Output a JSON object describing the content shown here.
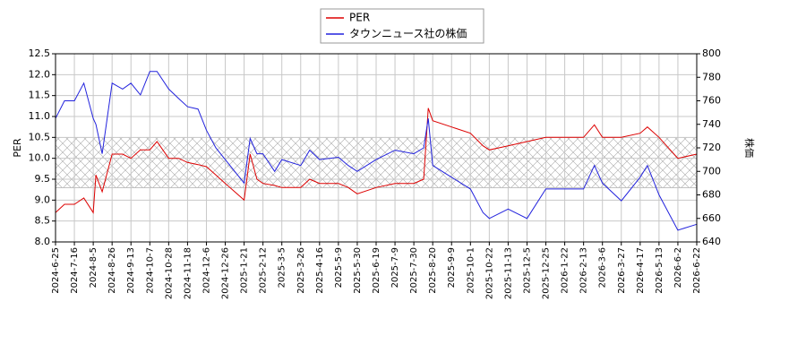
{
  "chart_data": {
    "type": "line",
    "x": [
      "2024-6-25",
      "2024-7-5",
      "2024-7-16",
      "2024-7-26",
      "2024-8-5",
      "2024-8-8",
      "2024-8-15",
      "2024-8-26",
      "2024-9-5",
      "2024-9-13",
      "2024-9-25",
      "2024-10-7",
      "2024-10-15",
      "2024-10-28",
      "2024-11-8",
      "2024-11-18",
      "2024-11-28",
      "2024-12-6",
      "2024-12-16",
      "2024-12-26",
      "2025-1-8",
      "2025-1-21",
      "2025-1-28",
      "2025-2-5",
      "2025-2-12",
      "2025-2-25",
      "2025-3-5",
      "2025-3-26",
      "2025-4-5",
      "2025-4-16",
      "2025-5-9",
      "2025-5-20",
      "2025-5-30",
      "2025-6-19",
      "2025-7-9",
      "2025-7-30",
      "2025-8-10",
      "2025-8-15",
      "2025-8-20",
      "2025-9-9",
      "2025-10-1",
      "2025-10-15",
      "2025-10-22",
      "2025-11-13",
      "2025-12-5",
      "2025-12-25",
      "2026-1-22",
      "2026-2-13",
      "2026-2-25",
      "2026-3-6",
      "2026-3-27",
      "2026-4-17",
      "2026-4-27",
      "2026-5-13",
      "2026-6-2",
      "2026-6-22"
    ],
    "series": [
      {
        "name": "PER",
        "color": "#dd0000",
        "axis": "y",
        "values": [
          8.7,
          8.9,
          8.9,
          9.05,
          8.7,
          9.6,
          9.2,
          10.1,
          10.1,
          10.0,
          10.2,
          10.2,
          10.4,
          10.0,
          10.0,
          9.9,
          9.85,
          9.8,
          9.6,
          9.4,
          9.2,
          9.0,
          10.1,
          9.5,
          9.4,
          9.35,
          9.3,
          9.3,
          9.5,
          9.4,
          9.4,
          9.3,
          9.15,
          9.3,
          9.4,
          9.4,
          9.5,
          11.2,
          10.9,
          10.75,
          10.6,
          10.3,
          10.2,
          10.3,
          10.4,
          10.5,
          10.5,
          10.5,
          10.8,
          10.5,
          10.5,
          10.6,
          10.75,
          10.5,
          10.0,
          10.1
        ]
      },
      {
        "name": "タウンニュース社の株価",
        "color": "#2222dd",
        "axis": "y2",
        "values": [
          745,
          760,
          760,
          775,
          745,
          740,
          715,
          775,
          770,
          775,
          765,
          785,
          785,
          770,
          762,
          755,
          753,
          735,
          720,
          710,
          700,
          690,
          728,
          715,
          715,
          700,
          710,
          705,
          718,
          710,
          712,
          705,
          700,
          710,
          718,
          715,
          720,
          745,
          705,
          695,
          685,
          665,
          660,
          668,
          660,
          685,
          685,
          685,
          705,
          690,
          675,
          695,
          705,
          680,
          650,
          655
        ]
      }
    ],
    "ylabel": "PER",
    "y2label": "株価",
    "ylim": [
      8.0,
      12.5
    ],
    "yticks": [
      {
        "value": 8.0,
        "label": "8.0"
      },
      8.5,
      {
        "value": 9.0,
        "label": "9.0"
      },
      9.5,
      {
        "value": 10.0,
        "label": "10.0"
      },
      10.5,
      {
        "value": 11.0,
        "label": "11.0"
      },
      11.5,
      {
        "value": 12.0,
        "label": "12.0"
      },
      12.5
    ],
    "y2lim": [
      640,
      800
    ],
    "y2ticks": [
      640,
      660,
      680,
      700,
      720,
      740,
      760,
      780,
      800
    ],
    "xticks": [
      "2024-6-25",
      "2024-7-16",
      "2024-8-5",
      "2024-8-26",
      "2024-9-13",
      "2024-10-7",
      "2024-10-28",
      "2024-11-18",
      "2024-12-6",
      "2024-12-26",
      "2025-1-21",
      "2025-2-12",
      "2025-3-5",
      "2025-3-26",
      "2025-4-16",
      "2025-5-9",
      "2025-5-30",
      "2025-6-19",
      "2025-7-9",
      "2025-7-30",
      "2025-8-20",
      "2025-9-9",
      "2025-10-1",
      "2025-10-22",
      "2025-11-13",
      "2025-12-5",
      "2025-12-25",
      "2026-1-22",
      "2026-2-13",
      "2026-3-6",
      "2026-3-27",
      "2026-4-17",
      "2026-5-13",
      "2026-6-2",
      "2026-6-22"
    ],
    "hatched_band": [
      9.3,
      10.5
    ],
    "grid": true,
    "legend": "top"
  }
}
